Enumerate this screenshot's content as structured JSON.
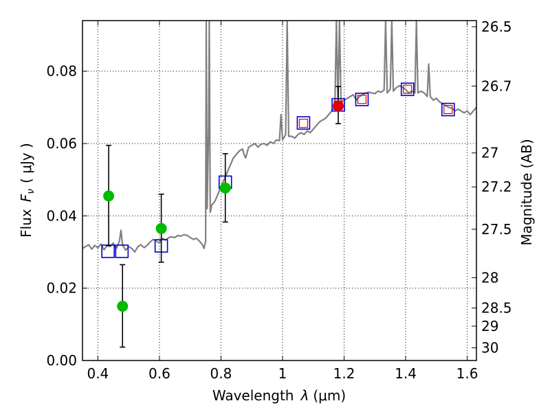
{
  "chart_data": {
    "type": "scatter",
    "xlabel": "Wavelength",
    "xlabel_symbol": "λ",
    "xlabel_unit": "(μm)",
    "ylabel": "Flux",
    "ylabel_symbol": "F",
    "ylabel_subscript": "ν",
    "ylabel_unit": "( μJy )",
    "y2label": "Magnitude (AB)",
    "xlim": [
      0.35,
      1.63
    ],
    "ylim": [
      0.0,
      0.094
    ],
    "grid": true,
    "x_ticks": [
      {
        "value": 0.4,
        "label": "0.4"
      },
      {
        "value": 0.6,
        "label": "0.6"
      },
      {
        "value": 0.8,
        "label": "0.8"
      },
      {
        "value": 1.0,
        "label": "1"
      },
      {
        "value": 1.2,
        "label": "1.2"
      },
      {
        "value": 1.4,
        "label": "1.4"
      },
      {
        "value": 1.6,
        "label": "1.6"
      }
    ],
    "y_ticks": [
      {
        "value": 0.0,
        "label": "0.00"
      },
      {
        "value": 0.02,
        "label": "0.02"
      },
      {
        "value": 0.04,
        "label": "0.04"
      },
      {
        "value": 0.06,
        "label": "0.06"
      },
      {
        "value": 0.08,
        "label": "0.08"
      }
    ],
    "y2_ticks": [
      {
        "flux": 0.0923,
        "label": "26.5"
      },
      {
        "flux": 0.0759,
        "label": "26.7"
      },
      {
        "flux": 0.0574,
        "label": "27"
      },
      {
        "flux": 0.048,
        "label": "27.2"
      },
      {
        "flux": 0.0363,
        "label": "27.5"
      },
      {
        "flux": 0.0229,
        "label": "28"
      },
      {
        "flux": 0.0145,
        "label": "28.5"
      },
      {
        "flux": 0.0095,
        "label": "29"
      },
      {
        "flux": 0.0035,
        "label": "30"
      }
    ],
    "series": [
      {
        "name": "model SED",
        "kind": "line",
        "color": "#808080",
        "points": [
          [
            0.35,
            0.031
          ],
          [
            0.36,
            0.0315
          ],
          [
            0.37,
            0.032
          ],
          [
            0.38,
            0.0308
          ],
          [
            0.39,
            0.0318
          ],
          [
            0.4,
            0.0312
          ],
          [
            0.41,
            0.0322
          ],
          [
            0.42,
            0.0306
          ],
          [
            0.43,
            0.0318
          ],
          [
            0.44,
            0.0315
          ],
          [
            0.45,
            0.0325
          ],
          [
            0.46,
            0.031
          ],
          [
            0.47,
            0.033
          ],
          [
            0.475,
            0.036
          ],
          [
            0.48,
            0.032
          ],
          [
            0.49,
            0.0305
          ],
          [
            0.5,
            0.0315
          ],
          [
            0.51,
            0.031
          ],
          [
            0.52,
            0.03
          ],
          [
            0.53,
            0.0315
          ],
          [
            0.54,
            0.032
          ],
          [
            0.55,
            0.0312
          ],
          [
            0.56,
            0.0318
          ],
          [
            0.57,
            0.0328
          ],
          [
            0.58,
            0.0335
          ],
          [
            0.59,
            0.033
          ],
          [
            0.6,
            0.0325
          ],
          [
            0.61,
            0.0338
          ],
          [
            0.62,
            0.0333
          ],
          [
            0.63,
            0.034
          ],
          [
            0.64,
            0.0342
          ],
          [
            0.65,
            0.034
          ],
          [
            0.66,
            0.0346
          ],
          [
            0.67,
            0.0344
          ],
          [
            0.68,
            0.0348
          ],
          [
            0.69,
            0.0346
          ],
          [
            0.7,
            0.034
          ],
          [
            0.71,
            0.0335
          ],
          [
            0.72,
            0.0338
          ],
          [
            0.73,
            0.033
          ],
          [
            0.74,
            0.032
          ],
          [
            0.745,
            0.031
          ],
          [
            0.75,
            0.033
          ],
          [
            0.752,
            0.094
          ],
          [
            0.755,
            0.042
          ],
          [
            0.76,
            0.065
          ],
          [
            0.762,
            0.094
          ],
          [
            0.765,
            0.041
          ],
          [
            0.77,
            0.043
          ],
          [
            0.78,
            0.044
          ],
          [
            0.79,
            0.046
          ],
          [
            0.8,
            0.048
          ],
          [
            0.81,
            0.05
          ],
          [
            0.82,
            0.052
          ],
          [
            0.83,
            0.054
          ],
          [
            0.84,
            0.056
          ],
          [
            0.85,
            0.057
          ],
          [
            0.86,
            0.058
          ],
          [
            0.87,
            0.0585
          ],
          [
            0.875,
            0.057
          ],
          [
            0.88,
            0.056
          ],
          [
            0.89,
            0.059
          ],
          [
            0.9,
            0.0595
          ],
          [
            0.91,
            0.06
          ],
          [
            0.92,
            0.059
          ],
          [
            0.93,
            0.0598
          ],
          [
            0.94,
            0.06
          ],
          [
            0.95,
            0.0595
          ],
          [
            0.96,
            0.0605
          ],
          [
            0.97,
            0.06
          ],
          [
            0.98,
            0.061
          ],
          [
            0.99,
            0.0608
          ],
          [
            0.995,
            0.068
          ],
          [
            1.0,
            0.061
          ],
          [
            1.01,
            0.0625
          ],
          [
            1.015,
            0.094
          ],
          [
            1.02,
            0.062
          ],
          [
            1.03,
            0.062
          ],
          [
            1.04,
            0.0615
          ],
          [
            1.05,
            0.0625
          ],
          [
            1.06,
            0.063
          ],
          [
            1.07,
            0.0625
          ],
          [
            1.08,
            0.0635
          ],
          [
            1.09,
            0.063
          ],
          [
            1.1,
            0.064
          ],
          [
            1.11,
            0.065
          ],
          [
            1.12,
            0.066
          ],
          [
            1.13,
            0.0665
          ],
          [
            1.14,
            0.067
          ],
          [
            1.15,
            0.068
          ],
          [
            1.16,
            0.069
          ],
          [
            1.17,
            0.07
          ],
          [
            1.175,
            0.094
          ],
          [
            1.18,
            0.071
          ],
          [
            1.185,
            0.094
          ],
          [
            1.19,
            0.0715
          ],
          [
            1.2,
            0.072
          ],
          [
            1.21,
            0.0725
          ],
          [
            1.22,
            0.073
          ],
          [
            1.23,
            0.0735
          ],
          [
            1.24,
            0.072
          ],
          [
            1.25,
            0.073
          ],
          [
            1.26,
            0.0735
          ],
          [
            1.27,
            0.074
          ],
          [
            1.28,
            0.0742
          ],
          [
            1.29,
            0.074
          ],
          [
            1.3,
            0.0738
          ],
          [
            1.31,
            0.0745
          ],
          [
            1.32,
            0.0742
          ],
          [
            1.33,
            0.0748
          ],
          [
            1.335,
            0.094
          ],
          [
            1.34,
            0.074
          ],
          [
            1.35,
            0.075
          ],
          [
            1.355,
            0.094
          ],
          [
            1.36,
            0.0745
          ],
          [
            1.37,
            0.0755
          ],
          [
            1.38,
            0.076
          ],
          [
            1.39,
            0.0755
          ],
          [
            1.4,
            0.075
          ],
          [
            1.41,
            0.074
          ],
          [
            1.42,
            0.0745
          ],
          [
            1.43,
            0.074
          ],
          [
            1.435,
            0.094
          ],
          [
            1.44,
            0.074
          ],
          [
            1.45,
            0.0745
          ],
          [
            1.46,
            0.074
          ],
          [
            1.47,
            0.073
          ],
          [
            1.475,
            0.082
          ],
          [
            1.48,
            0.073
          ],
          [
            1.49,
            0.072
          ],
          [
            1.5,
            0.0725
          ],
          [
            1.51,
            0.0715
          ],
          [
            1.52,
            0.071
          ],
          [
            1.53,
            0.0705
          ],
          [
            1.54,
            0.07
          ],
          [
            1.55,
            0.0698
          ],
          [
            1.56,
            0.069
          ],
          [
            1.57,
            0.0695
          ],
          [
            1.58,
            0.069
          ],
          [
            1.59,
            0.0685
          ],
          [
            1.6,
            0.069
          ],
          [
            1.61,
            0.068
          ],
          [
            1.62,
            0.069
          ],
          [
            1.63,
            0.07
          ]
        ]
      },
      {
        "name": "model photometry (blue squares)",
        "kind": "square",
        "color": "#0000cc",
        "points": [
          [
            0.433,
            0.0302
          ],
          [
            0.478,
            0.0302
          ],
          [
            0.606,
            0.0317
          ],
          [
            0.814,
            0.0493
          ],
          [
            1.068,
            0.0657
          ],
          [
            1.181,
            0.0707
          ],
          [
            1.258,
            0.0722
          ],
          [
            1.406,
            0.075
          ],
          [
            1.538,
            0.0694
          ]
        ]
      },
      {
        "name": "measured photometry (red squares)",
        "kind": "square-small",
        "color": "#e00000",
        "points": [
          [
            1.068,
            0.0656
          ],
          [
            1.181,
            0.0706
          ],
          [
            1.258,
            0.0722
          ],
          [
            1.406,
            0.075
          ],
          [
            1.538,
            0.0694
          ]
        ]
      },
      {
        "name": "measured photometry (green circles)",
        "kind": "circle",
        "color": "#00bb00",
        "points": [
          [
            0.435,
            0.0455
          ],
          [
            0.48,
            0.015
          ],
          [
            0.606,
            0.0365
          ],
          [
            0.814,
            0.0477
          ]
        ],
        "errors": [
          [
            0.0318,
            0.0595
          ],
          [
            0.0037,
            0.0265
          ],
          [
            0.0272,
            0.046
          ],
          [
            0.0383,
            0.0572
          ]
        ]
      },
      {
        "name": "measured photometry (red circle)",
        "kind": "circle",
        "color": "#e00000",
        "points": [
          [
            1.181,
            0.0704
          ]
        ],
        "errors": [
          [
            0.0655,
            0.0758
          ]
        ]
      }
    ]
  }
}
